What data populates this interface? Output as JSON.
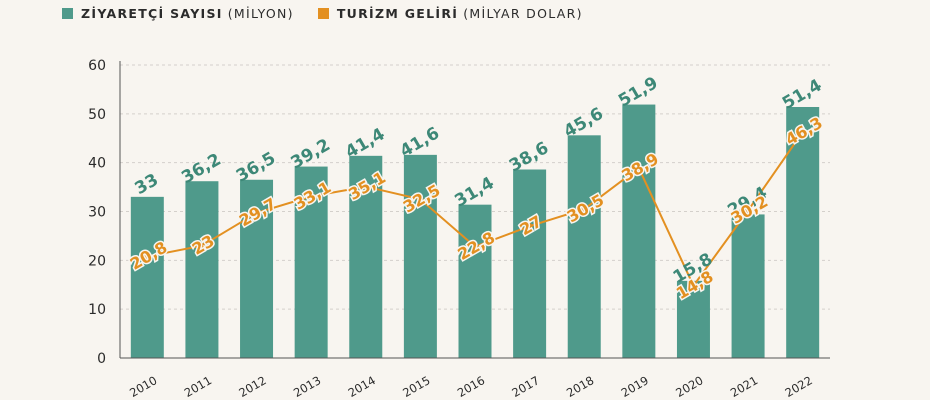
{
  "legend": {
    "visitors_name": "ZİYARETÇİ SAYISI",
    "visitors_unit": "(MİLYON)",
    "revenue_name": "TURİZM GELİRİ",
    "revenue_unit": "(MİLYAR DOLAR)"
  },
  "colors": {
    "bar": "#4f9a8b",
    "line": "#e39021",
    "bar_label": "#3d8877",
    "axis_text": "#2b2b2b",
    "grid": "#d4d0cb",
    "background": "#f8f5f0"
  },
  "chart_data": {
    "type": "bar",
    "categories": [
      "2010",
      "2011",
      "2012",
      "2013",
      "2014",
      "2015",
      "2016",
      "2017",
      "2018",
      "2019",
      "2020",
      "2021",
      "2022"
    ],
    "series": [
      {
        "name": "ZİYARETÇİ SAYISI (MİLYON)",
        "type": "bar",
        "values": [
          33,
          36.2,
          36.5,
          39.2,
          41.4,
          41.6,
          31.4,
          38.6,
          45.6,
          51.9,
          15.8,
          29.4,
          51.4
        ],
        "labels": [
          "33",
          "36,2",
          "36,5",
          "39,2",
          "41,4",
          "41,6",
          "31,4",
          "38,6",
          "45,6",
          "51,9",
          "15,8",
          "29,4",
          "51,4"
        ]
      },
      {
        "name": "TURİZM GELİRİ (MİLYAR DOLAR)",
        "type": "line",
        "values": [
          20.8,
          23,
          29.7,
          33.1,
          35.1,
          32.5,
          22.8,
          27,
          30.5,
          38.9,
          14.8,
          30.2,
          46.3
        ],
        "labels": [
          "20,8",
          "23",
          "29,7",
          "33,1",
          "35,1",
          "32,5",
          "22,8",
          "27",
          "30,5",
          "38,9",
          "14,8",
          "30,2",
          "46,3"
        ]
      }
    ],
    "yticks": [
      "0",
      "10",
      "20",
      "30",
      "40",
      "50",
      "60"
    ],
    "ylim": [
      0,
      60
    ],
    "grid": true,
    "legend_position": "top-left"
  }
}
